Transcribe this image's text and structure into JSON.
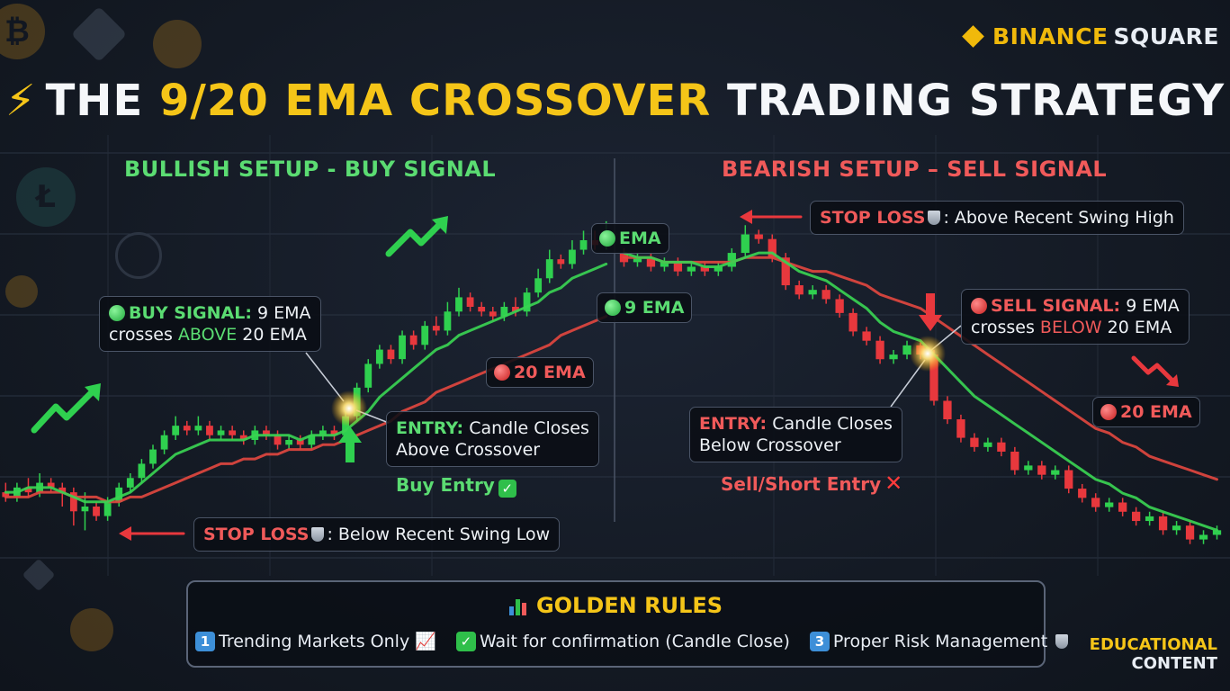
{
  "brand": {
    "word1": "BINANCE",
    "word2": "SQUARE",
    "color": "#f0b90b"
  },
  "title": {
    "part1": "THE",
    "highlight": "9/20 EMA CROSSOVER",
    "part2": "TRADING STRATEGY",
    "icon": "lightning-bolt-icon"
  },
  "bullish": {
    "heading": "BULLISH SETUP - BUY SIGNAL",
    "buy_signal_label": "BUY SIGNAL:",
    "buy_signal_text1": "9 EMA",
    "buy_signal_text2a": "crosses",
    "buy_signal_text2b": "ABOVE",
    "buy_signal_text2c": "20 EMA",
    "entry_label": "ENTRY:",
    "entry_text1": "Candle Closes",
    "entry_text2": "Above Crossover",
    "buy_entry": "Buy Entry",
    "stop_label": "STOP LOSS",
    "stop_text": ": Below Recent Swing Low",
    "ema9_label": "EMA",
    "ema9b_label": "9 EMA",
    "ema20_label": "20 EMA"
  },
  "bearish": {
    "heading": "BEARISH SETUP – SELL SIGNAL",
    "stop_label": "STOP LOSS",
    "stop_text": ": Above Recent Swing High",
    "sell_signal_label": "SELL SIGNAL:",
    "sell_signal_text1": "9 EMA",
    "sell_signal_text2a": "crosses",
    "sell_signal_text2b": "BELOW",
    "sell_signal_text2c": "20 EMA",
    "entry_label": "ENTRY:",
    "entry_text1": "Candle Closes",
    "entry_text2": "Below Crossover",
    "sell_entry": "Sell/Short Entry",
    "ema20_label": "20 EMA"
  },
  "rules": {
    "title": "GOLDEN RULES",
    "items": [
      {
        "num": "1",
        "text": "Trending Markets Only"
      },
      {
        "num": "✓",
        "text": "Wait for confirmation (Candle Close)"
      },
      {
        "num": "3",
        "text": "Proper Risk Management"
      }
    ]
  },
  "footer": {
    "line1": "EDUCATIONAL",
    "line2": "CONTENT"
  },
  "colors": {
    "bull": "#2fd04f",
    "bear": "#e8383d",
    "ema9": "#39d353",
    "ema20": "#e0463f",
    "gold": "#f5c518"
  },
  "chart_data": [
    {
      "type": "candlestick",
      "panel": "bullish",
      "title": "BULLISH SETUP - BUY SIGNAL",
      "candles": [
        [
          100,
          99,
          102,
          98
        ],
        [
          99,
          101,
          102,
          98
        ],
        [
          101,
          100,
          103,
          99
        ],
        [
          100,
          102,
          104,
          99
        ],
        [
          102,
          101,
          103,
          100
        ],
        [
          101,
          100,
          102,
          97
        ],
        [
          100,
          96,
          101,
          93
        ],
        [
          96,
          97,
          100,
          92
        ],
        [
          97,
          95,
          98,
          94
        ],
        [
          95,
          98,
          99,
          94
        ],
        [
          98,
          101,
          102,
          97
        ],
        [
          101,
          103,
          104,
          100
        ],
        [
          103,
          106,
          107,
          102
        ],
        [
          106,
          109,
          110,
          105
        ],
        [
          109,
          112,
          113,
          108
        ],
        [
          112,
          114,
          116,
          111
        ],
        [
          114,
          113,
          115,
          112
        ],
        [
          113,
          114,
          116,
          112
        ],
        [
          114,
          112,
          115,
          111
        ],
        [
          112,
          113,
          114,
          111
        ],
        [
          113,
          112,
          114,
          111
        ],
        [
          112,
          111,
          113,
          110
        ],
        [
          111,
          113,
          114,
          110
        ],
        [
          113,
          112,
          114,
          111
        ],
        [
          112,
          110,
          113,
          109
        ],
        [
          110,
          111,
          112,
          109
        ],
        [
          111,
          110,
          112,
          109
        ],
        [
          110,
          112,
          113,
          109
        ],
        [
          112,
          113,
          114,
          111
        ],
        [
          113,
          112,
          114,
          111
        ],
        [
          112,
          116,
          117,
          111
        ],
        [
          116,
          122,
          123,
          115
        ],
        [
          122,
          127,
          128,
          121
        ],
        [
          127,
          130,
          131,
          126
        ],
        [
          130,
          128,
          131,
          127
        ],
        [
          128,
          133,
          134,
          127
        ],
        [
          133,
          131,
          134,
          130
        ],
        [
          131,
          135,
          136,
          130
        ],
        [
          135,
          134,
          137,
          133
        ],
        [
          134,
          138,
          140,
          133
        ],
        [
          138,
          141,
          143,
          137
        ],
        [
          141,
          139,
          142,
          138
        ],
        [
          139,
          138,
          140,
          137
        ],
        [
          138,
          137,
          139,
          136
        ],
        [
          137,
          139,
          140,
          136
        ],
        [
          139,
          138,
          141,
          137
        ],
        [
          138,
          142,
          143,
          137
        ],
        [
          142,
          145,
          147,
          141
        ],
        [
          145,
          149,
          151,
          144
        ],
        [
          149,
          148,
          150,
          147
        ],
        [
          148,
          151,
          153,
          147
        ],
        [
          151,
          153,
          155,
          150
        ],
        [
          153,
          152,
          155,
          151
        ],
        [
          152,
          155,
          157,
          151
        ]
      ],
      "ema9": [
        100,
        100,
        101,
        101,
        101,
        100,
        99,
        98,
        98,
        98,
        99,
        100,
        102,
        104,
        106,
        108,
        109,
        110,
        111,
        111,
        111,
        111,
        112,
        112,
        112,
        112,
        111,
        112,
        112,
        112,
        113,
        115,
        117,
        120,
        122,
        124,
        126,
        128,
        130,
        131,
        133,
        134,
        135,
        136,
        137,
        138,
        139,
        140,
        142,
        143,
        145,
        146,
        147,
        148
      ],
      "ema20": [
        99,
        99,
        99,
        100,
        100,
        100,
        99,
        99,
        99,
        98,
        98,
        99,
        99,
        100,
        101,
        102,
        103,
        104,
        105,
        106,
        106,
        107,
        107,
        108,
        108,
        109,
        109,
        109,
        110,
        110,
        111,
        112,
        113,
        114,
        115,
        117,
        118,
        119,
        121,
        122,
        123,
        124,
        125,
        126,
        127,
        128,
        129,
        130,
        131,
        133,
        134,
        135,
        136,
        137
      ]
    },
    {
      "type": "candlestick",
      "panel": "bearish",
      "title": "BEARISH SETUP – SELL SIGNAL",
      "candles": [
        [
          150,
          148,
          151,
          147
        ],
        [
          148,
          149,
          150,
          147
        ],
        [
          149,
          147,
          150,
          146
        ],
        [
          147,
          148,
          149,
          146
        ],
        [
          148,
          146,
          149,
          145
        ],
        [
          146,
          147,
          148,
          145
        ],
        [
          147,
          146,
          148,
          145
        ],
        [
          146,
          147,
          148,
          145
        ],
        [
          147,
          150,
          151,
          146
        ],
        [
          150,
          154,
          156,
          149
        ],
        [
          154,
          153,
          155,
          152
        ],
        [
          153,
          149,
          154,
          148
        ],
        [
          149,
          143,
          150,
          142
        ],
        [
          143,
          141,
          144,
          140
        ],
        [
          141,
          142,
          143,
          140
        ],
        [
          142,
          140,
          143,
          139
        ],
        [
          140,
          137,
          141,
          136
        ],
        [
          137,
          133,
          138,
          132
        ],
        [
          133,
          131,
          134,
          130
        ],
        [
          131,
          127,
          132,
          126
        ],
        [
          127,
          128,
          129,
          126
        ],
        [
          128,
          130,
          131,
          127
        ],
        [
          130,
          128,
          131,
          127
        ],
        [
          128,
          118,
          129,
          117
        ],
        [
          118,
          114,
          119,
          113
        ],
        [
          114,
          110,
          115,
          109
        ],
        [
          110,
          108,
          111,
          107
        ],
        [
          108,
          109,
          110,
          107
        ],
        [
          109,
          107,
          110,
          106
        ],
        [
          107,
          103,
          108,
          102
        ],
        [
          103,
          104,
          105,
          102
        ],
        [
          104,
          102,
          105,
          101
        ],
        [
          102,
          103,
          104,
          101
        ],
        [
          103,
          99,
          104,
          98
        ],
        [
          99,
          97,
          100,
          96
        ],
        [
          97,
          95,
          98,
          94
        ],
        [
          95,
          96,
          97,
          94
        ],
        [
          96,
          94,
          97,
          93
        ],
        [
          94,
          92,
          95,
          91
        ],
        [
          92,
          93,
          94,
          91
        ],
        [
          93,
          90,
          94,
          89
        ],
        [
          90,
          91,
          92,
          89
        ],
        [
          91,
          88,
          92,
          87
        ],
        [
          88,
          89,
          90,
          87
        ],
        [
          89,
          90,
          91,
          88
        ]
      ],
      "ema9": [
        150,
        149,
        149,
        148,
        148,
        148,
        147,
        147,
        148,
        149,
        150,
        150,
        148,
        146,
        145,
        144,
        142,
        140,
        138,
        135,
        133,
        132,
        131,
        128,
        125,
        122,
        119,
        117,
        115,
        113,
        111,
        109,
        107,
        105,
        103,
        101,
        100,
        98,
        97,
        95,
        94,
        93,
        92,
        91,
        90
      ],
      "ema20": [
        149,
        149,
        149,
        148,
        148,
        148,
        148,
        148,
        148,
        149,
        149,
        149,
        148,
        147,
        146,
        146,
        145,
        144,
        143,
        141,
        140,
        139,
        138,
        136,
        134,
        132,
        130,
        128,
        126,
        124,
        122,
        120,
        118,
        116,
        114,
        112,
        111,
        109,
        108,
        106,
        105,
        104,
        103,
        102,
        101
      ]
    }
  ]
}
